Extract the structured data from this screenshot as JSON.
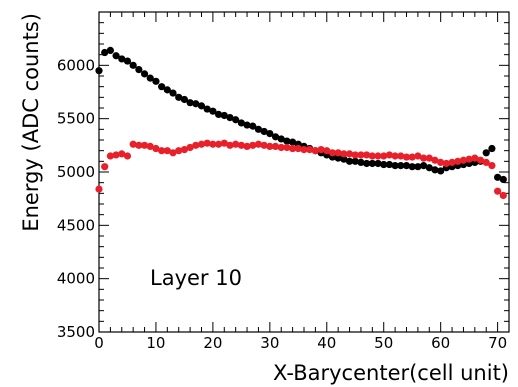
{
  "chart_data": {
    "type": "scatter",
    "xlabel": "X-Barycenter(cell unit)",
    "ylabel": "Energy (ADC counts)",
    "xlim": [
      0,
      72
    ],
    "ylim": [
      3500,
      6500
    ],
    "xticks": [
      0,
      10,
      20,
      30,
      40,
      50,
      60,
      70
    ],
    "yticks": [
      3500,
      4000,
      4500,
      5000,
      5500,
      6000
    ],
    "annotation": "Layer 10",
    "grid": false,
    "legend": "none",
    "series": [
      {
        "color": "#000000",
        "x": [
          0,
          1,
          2,
          3,
          4,
          5,
          6,
          7,
          8,
          9,
          10,
          11,
          12,
          13,
          14,
          15,
          16,
          17,
          18,
          19,
          20,
          21,
          22,
          23,
          24,
          25,
          26,
          27,
          28,
          29,
          30,
          31,
          32,
          33,
          34,
          35,
          36,
          37,
          38,
          39,
          40,
          41,
          42,
          43,
          44,
          45,
          46,
          47,
          48,
          49,
          50,
          51,
          52,
          53,
          54,
          55,
          56,
          57,
          58,
          59,
          60,
          61,
          62,
          63,
          64,
          65,
          66,
          67,
          68,
          69,
          70,
          71
        ],
        "values": [
          5950,
          6120,
          6140,
          6090,
          6060,
          6040,
          6000,
          5960,
          5920,
          5880,
          5850,
          5800,
          5770,
          5740,
          5700,
          5680,
          5650,
          5640,
          5620,
          5590,
          5570,
          5540,
          5530,
          5510,
          5490,
          5460,
          5440,
          5430,
          5400,
          5380,
          5360,
          5330,
          5310,
          5290,
          5280,
          5260,
          5240,
          5220,
          5200,
          5180,
          5160,
          5140,
          5130,
          5120,
          5100,
          5100,
          5090,
          5080,
          5080,
          5080,
          5070,
          5070,
          5060,
          5060,
          5060,
          5050,
          5050,
          5060,
          5040,
          5020,
          5010,
          5040,
          5050,
          5060,
          5070,
          5080,
          5090,
          5100,
          5180,
          5220,
          4950,
          4930
        ]
      },
      {
        "color": "#e8202a",
        "x": [
          0,
          1,
          2,
          3,
          4,
          5,
          6,
          7,
          8,
          9,
          10,
          11,
          12,
          13,
          14,
          15,
          16,
          17,
          18,
          19,
          20,
          21,
          22,
          23,
          24,
          25,
          26,
          27,
          28,
          29,
          30,
          31,
          32,
          33,
          34,
          35,
          36,
          37,
          38,
          39,
          40,
          41,
          42,
          43,
          44,
          45,
          46,
          47,
          48,
          49,
          50,
          51,
          52,
          53,
          54,
          55,
          56,
          57,
          58,
          59,
          60,
          61,
          62,
          63,
          64,
          65,
          66,
          67,
          68,
          69,
          70,
          71
        ],
        "values": [
          4840,
          5050,
          5150,
          5160,
          5170,
          5150,
          5260,
          5250,
          5250,
          5240,
          5220,
          5200,
          5200,
          5180,
          5200,
          5210,
          5230,
          5250,
          5260,
          5270,
          5260,
          5260,
          5270,
          5250,
          5260,
          5250,
          5240,
          5250,
          5260,
          5250,
          5240,
          5240,
          5230,
          5230,
          5220,
          5220,
          5210,
          5210,
          5200,
          5210,
          5200,
          5180,
          5180,
          5170,
          5170,
          5160,
          5160,
          5160,
          5150,
          5150,
          5150,
          5160,
          5150,
          5150,
          5140,
          5140,
          5150,
          5130,
          5130,
          5110,
          5090,
          5080,
          5090,
          5100,
          5110,
          5120,
          5130,
          5110,
          5090,
          5060,
          4820,
          4780
        ]
      }
    ]
  }
}
